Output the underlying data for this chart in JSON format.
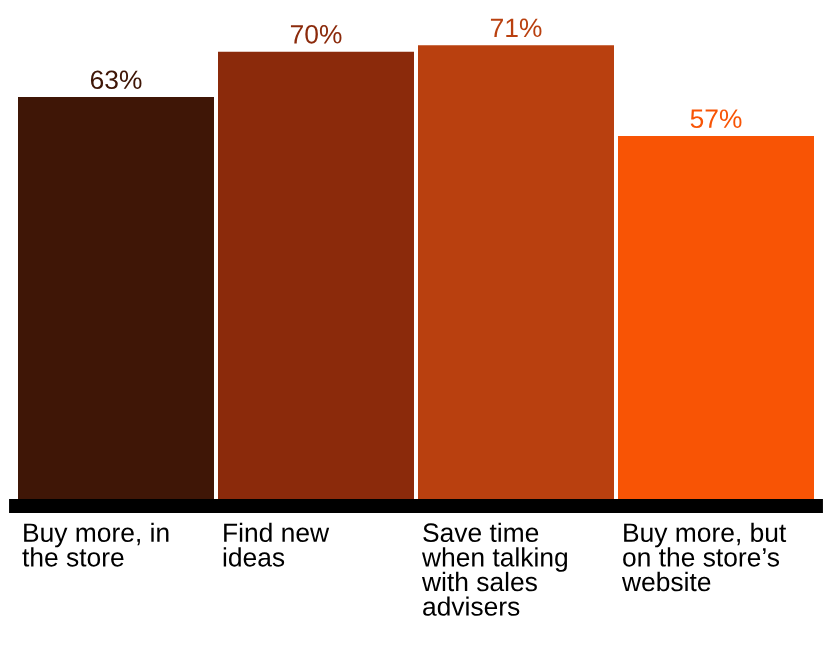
{
  "chart_data": {
    "type": "bar",
    "categories": [
      "Buy more, in\nthe store",
      "Find new\nideas",
      "Save time\nwhen talking\nwith sales\nadvisers",
      "Buy more, but\non the store’s\nwebsite"
    ],
    "values": [
      63,
      70,
      71,
      57
    ],
    "colors": [
      "#3f1606",
      "#8b2a0b",
      "#b9400f",
      "#f85405"
    ],
    "value_labels": [
      "63%",
      "70%",
      "71%",
      "57%"
    ],
    "grid": false,
    "legend": false
  }
}
